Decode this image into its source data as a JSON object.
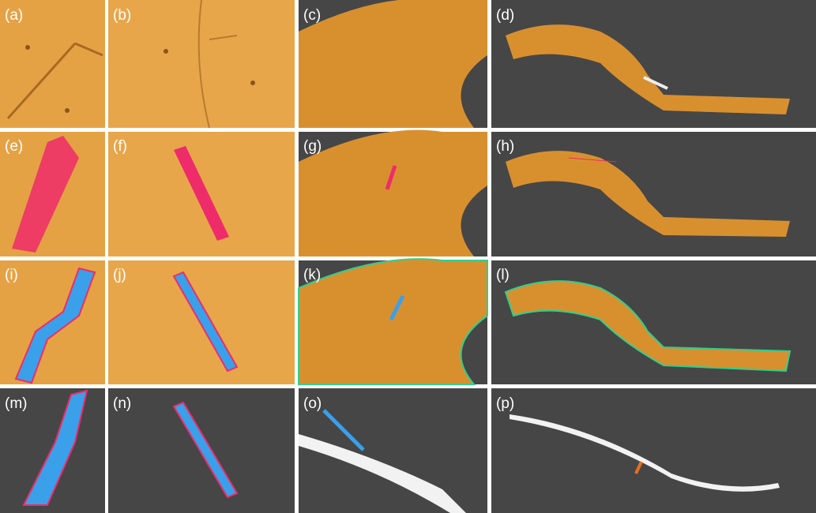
{
  "panels": [
    "(a)",
    "(b)",
    "(c)",
    "(d)",
    "(e)",
    "(f)",
    "(g)",
    "(h)",
    "(i)",
    "(j)",
    "(k)",
    "(l)",
    "(m)",
    "(n)",
    "(o)",
    "(p)"
  ]
}
